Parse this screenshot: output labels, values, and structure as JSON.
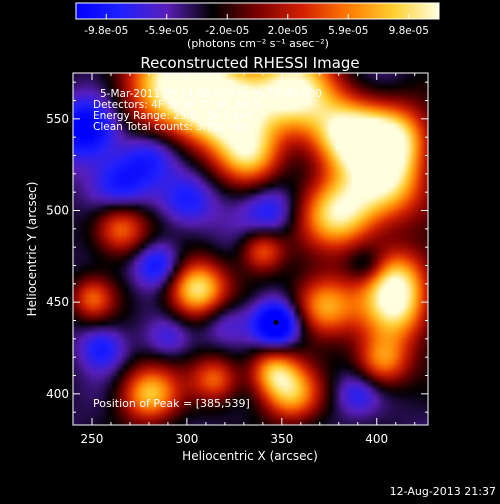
{
  "colorbar": {
    "tick_labels": [
      "-9.8e-05",
      "-5.9e-05",
      "-2.0e-05",
      "2.0e-05",
      "5.9e-05",
      "9.8e-05"
    ],
    "units_label": "(photons cm⁻² s⁻¹ asec⁻²)",
    "range": [
      -9.8e-05,
      9.8e-05
    ],
    "colors": [
      "#0000ff",
      "#2020ff",
      "#5a1fb8",
      "#000000",
      "#7a0000",
      "#d42000",
      "#ff7a00",
      "#ffd030",
      "#ffffe0"
    ]
  },
  "chart_data": {
    "type": "heatmap",
    "title": "Reconstructed RHESSI Image",
    "xlabel": "Heliocentric X (arcsec)",
    "ylabel": "Heliocentric Y (arcsec)",
    "xlim": [
      240,
      427
    ],
    "ylim": [
      383,
      575
    ],
    "xticks": [
      250,
      300,
      350,
      400
    ],
    "yticks": [
      400,
      450,
      500,
      550
    ],
    "info_lines": [
      "5-Mar-2011 05:14:08.000 to 05:17:40.000",
      "Detectors: 4F 5F 6F 7F 8F, Att 0",
      "Energy Range: 25.0 - 50.0 keV",
      "Clean     Total counts: 3.70E+03"
    ],
    "peak_label": "Position of Peak = [385,539]",
    "marker": {
      "x": 347,
      "y": 439
    },
    "sources": [
      {
        "x": 293,
        "y": 570,
        "s": 20,
        "v": 0.9
      },
      {
        "x": 320,
        "y": 557,
        "s": 16,
        "v": 1.0
      },
      {
        "x": 356,
        "y": 565,
        "s": 16,
        "v": 0.95
      },
      {
        "x": 385,
        "y": 541,
        "s": 14,
        "v": 1.0
      },
      {
        "x": 410,
        "y": 540,
        "s": 13,
        "v": 0.7
      },
      {
        "x": 333,
        "y": 530,
        "s": 12,
        "v": 0.55
      },
      {
        "x": 405,
        "y": 515,
        "s": 15,
        "v": 0.75
      },
      {
        "x": 380,
        "y": 498,
        "s": 14,
        "v": 0.85
      },
      {
        "x": 305,
        "y": 457,
        "s": 11,
        "v": 0.95
      },
      {
        "x": 372,
        "y": 448,
        "s": 12,
        "v": 0.7
      },
      {
        "x": 410,
        "y": 445,
        "s": 13,
        "v": 0.65
      },
      {
        "x": 410,
        "y": 463,
        "s": 12,
        "v": 0.6
      },
      {
        "x": 265,
        "y": 490,
        "s": 10,
        "v": 0.55
      },
      {
        "x": 280,
        "y": 400,
        "s": 11,
        "v": 0.7
      },
      {
        "x": 315,
        "y": 408,
        "s": 9,
        "v": 0.45
      },
      {
        "x": 355,
        "y": 400,
        "s": 11,
        "v": 0.6
      },
      {
        "x": 345,
        "y": 413,
        "s": 9,
        "v": 0.5
      },
      {
        "x": 403,
        "y": 418,
        "s": 10,
        "v": 0.55
      },
      {
        "x": 250,
        "y": 452,
        "s": 8,
        "v": 0.35
      },
      {
        "x": 340,
        "y": 478,
        "s": 8,
        "v": 0.4
      },
      {
        "x": 248,
        "y": 545,
        "s": 12,
        "v": -0.8
      },
      {
        "x": 265,
        "y": 515,
        "s": 11,
        "v": -0.55
      },
      {
        "x": 300,
        "y": 505,
        "s": 10,
        "v": -0.5
      },
      {
        "x": 345,
        "y": 500,
        "s": 10,
        "v": -0.45
      },
      {
        "x": 280,
        "y": 530,
        "s": 10,
        "v": -0.45
      },
      {
        "x": 347,
        "y": 438,
        "s": 9,
        "v": -1.0
      },
      {
        "x": 285,
        "y": 470,
        "s": 9,
        "v": -0.6
      },
      {
        "x": 255,
        "y": 425,
        "s": 8,
        "v": -0.45
      },
      {
        "x": 390,
        "y": 400,
        "s": 8,
        "v": -0.35
      },
      {
        "x": 320,
        "y": 440,
        "s": 9,
        "v": -0.35
      },
      {
        "x": 290,
        "y": 430,
        "s": 8,
        "v": -0.3
      },
      {
        "x": 395,
        "y": 470,
        "s": 7,
        "v": -0.4
      }
    ]
  },
  "timestamp": "12-Aug-2013 21:37"
}
